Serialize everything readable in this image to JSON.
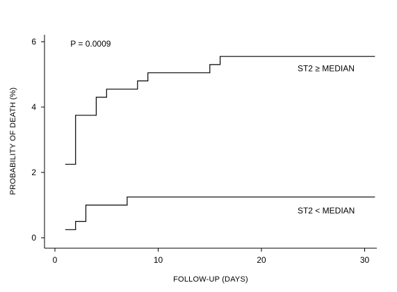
{
  "chart_data": {
    "type": "line",
    "step": true,
    "xlabel": "FOLLOW-UP (DAYS)",
    "ylabel": "PROBABILITY OF DEATH (%)",
    "xlim": [
      0,
      32
    ],
    "ylim": [
      0,
      6.3
    ],
    "xticks": [
      0,
      10,
      20,
      30
    ],
    "yticks": [
      0,
      2,
      4,
      6
    ],
    "grid": false,
    "annotations": [
      {
        "text": "P = 0.0009",
        "x": 1.5,
        "y": 5.85
      }
    ],
    "series": [
      {
        "name": "ST2 ≥ MEDIAN",
        "label_x": 23.5,
        "label_y": 5.1,
        "x": [
          1,
          2,
          4,
          5,
          8,
          9,
          15,
          16,
          31
        ],
        "y": [
          2.25,
          3.75,
          4.3,
          4.55,
          4.8,
          5.05,
          5.3,
          5.55,
          5.55
        ]
      },
      {
        "name": "ST2 < MEDIAN",
        "label_x": 23.5,
        "label_y": 0.75,
        "x": [
          1,
          2,
          3,
          7,
          31
        ],
        "y": [
          0.25,
          0.5,
          1.0,
          1.25,
          1.25
        ]
      }
    ]
  }
}
